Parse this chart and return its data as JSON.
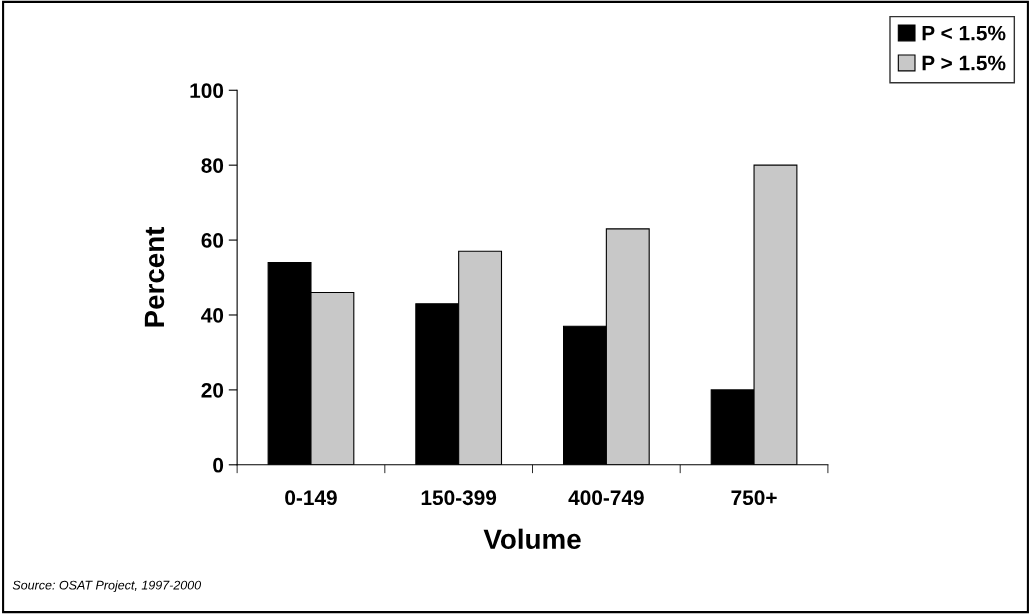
{
  "chart_data": {
    "type": "bar",
    "xlabel": "Volume",
    "ylabel": "Percent",
    "categories": [
      "0-149",
      "150-399",
      "400-749",
      "750+"
    ],
    "series": [
      {
        "name": "P < 1.5%",
        "color": "#000000",
        "values": [
          54,
          43,
          37,
          20
        ]
      },
      {
        "name": "P > 1.5%",
        "color": "#c8c8c8",
        "values": [
          46,
          57,
          63,
          80
        ]
      }
    ],
    "ylim": [
      0,
      100
    ],
    "yticks": [
      0,
      20,
      40,
      60,
      80,
      100
    ],
    "grid": false,
    "legend": "top right",
    "annotations": [
      "Source: OSAT Project, 1997-2000"
    ]
  }
}
